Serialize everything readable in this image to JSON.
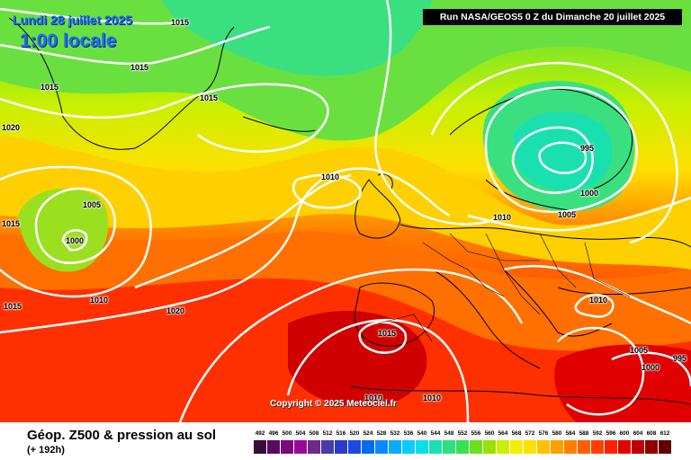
{
  "header": {
    "date": "Lundi 28 juillet 2025",
    "time": "1:00 locale",
    "run": "Run NASA/GEOS5 0 Z du Dimanche 20 juillet 2025"
  },
  "copyright": "Copyright © 2025 Meteociel.fr",
  "footer": {
    "title": "Géop. Z500 & pression au sol",
    "subtitle": "(+ 192h)"
  },
  "isobar_labels": [
    "1015",
    "1015",
    "1015",
    "1015",
    "1020",
    "1015",
    "1005",
    "1000",
    "1010",
    "1015",
    "1010",
    "1020",
    "995",
    "1000",
    "1005",
    "1010",
    "1015",
    "1010",
    "1010",
    "1005",
    "1000",
    "995",
    "1010"
  ],
  "scale": {
    "values": [
      "492",
      "496",
      "500",
      "504",
      "508",
      "512",
      "516",
      "520",
      "524",
      "528",
      "532",
      "536",
      "540",
      "544",
      "548",
      "552",
      "556",
      "560",
      "564",
      "568",
      "572",
      "576",
      "580",
      "584",
      "588",
      "592",
      "596",
      "600",
      "604",
      "608",
      "612"
    ],
    "colors": [
      "#3a0a3a",
      "#5a0a5a",
      "#7a0a7a",
      "#9a0a9a",
      "#6a2a8a",
      "#4a3aaa",
      "#2a3aca",
      "#1a4ae0",
      "#0a6af0",
      "#0a8aff",
      "#0aaaff",
      "#0acaff",
      "#0ae0e0",
      "#1ae0b0",
      "#2ae080",
      "#3ae050",
      "#6ae020",
      "#9ae000",
      "#c8f000",
      "#f0f000",
      "#ffe000",
      "#ffc000",
      "#ffa000",
      "#ff8000",
      "#ff6000",
      "#ff4000",
      "#ff2000",
      "#e00000",
      "#c00000",
      "#900000",
      "#600000"
    ]
  },
  "colors": {
    "label_blue": "#1e6bff"
  }
}
